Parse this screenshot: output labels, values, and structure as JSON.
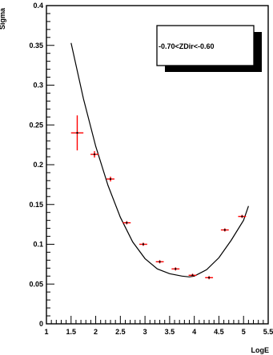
{
  "chart_data": {
    "type": "scatter",
    "title": "",
    "xlabel": "LogE",
    "ylabel": "Sigma",
    "xlim": [
      1,
      5.5
    ],
    "ylim": [
      0,
      0.4
    ],
    "grid": false,
    "x_ticks": [
      "1",
      "1.5",
      "2",
      "2.5",
      "3",
      "3.5",
      "4",
      "4.5",
      "5",
      "5.5"
    ],
    "y_ticks": [
      "0",
      "0.05",
      "0.1",
      "0.15",
      "0.2",
      "0.25",
      "0.3",
      "0.35",
      "0.4"
    ],
    "legend_box": "-0.70<ZDir<-0.60",
    "series": [
      {
        "points": [
          {
            "x": 1.625,
            "y": 0.24,
            "xerr": 0.125,
            "yerr": 0.022
          },
          {
            "x": 1.975,
            "y": 0.213,
            "xerr": 0.08,
            "yerr": 0.004
          },
          {
            "x": 2.3,
            "y": 0.182,
            "xerr": 0.08,
            "yerr": 0.003
          },
          {
            "x": 2.63,
            "y": 0.127,
            "xerr": 0.08,
            "yerr": 0.002
          },
          {
            "x": 2.965,
            "y": 0.1,
            "xerr": 0.08,
            "yerr": 0.002
          },
          {
            "x": 3.3,
            "y": 0.078,
            "xerr": 0.08,
            "yerr": 0.002
          },
          {
            "x": 3.62,
            "y": 0.069,
            "xerr": 0.08,
            "yerr": 0.002
          },
          {
            "x": 3.965,
            "y": 0.061,
            "xerr": 0.08,
            "yerr": 0.002
          },
          {
            "x": 4.3,
            "y": 0.058,
            "xerr": 0.08,
            "yerr": 0.002
          },
          {
            "x": 4.62,
            "y": 0.118,
            "xerr": 0.08,
            "yerr": 0.002
          },
          {
            "x": 4.97,
            "y": 0.135,
            "xerr": 0.08,
            "yerr": 0.002
          }
        ],
        "color": "#ff0000"
      },
      {
        "type": "line",
        "curve": [
          [
            1.5,
            0.353
          ],
          [
            1.75,
            0.283
          ],
          [
            2.0,
            0.223
          ],
          [
            2.25,
            0.174
          ],
          [
            2.5,
            0.134
          ],
          [
            2.75,
            0.103
          ],
          [
            3.0,
            0.082
          ],
          [
            3.25,
            0.069
          ],
          [
            3.5,
            0.063
          ],
          [
            3.75,
            0.06
          ],
          [
            3.9,
            0.059
          ],
          [
            4.0,
            0.06
          ],
          [
            4.25,
            0.068
          ],
          [
            4.5,
            0.083
          ],
          [
            4.75,
            0.105
          ],
          [
            5.0,
            0.13
          ],
          [
            5.1,
            0.148
          ]
        ],
        "color": "#000000"
      }
    ]
  }
}
